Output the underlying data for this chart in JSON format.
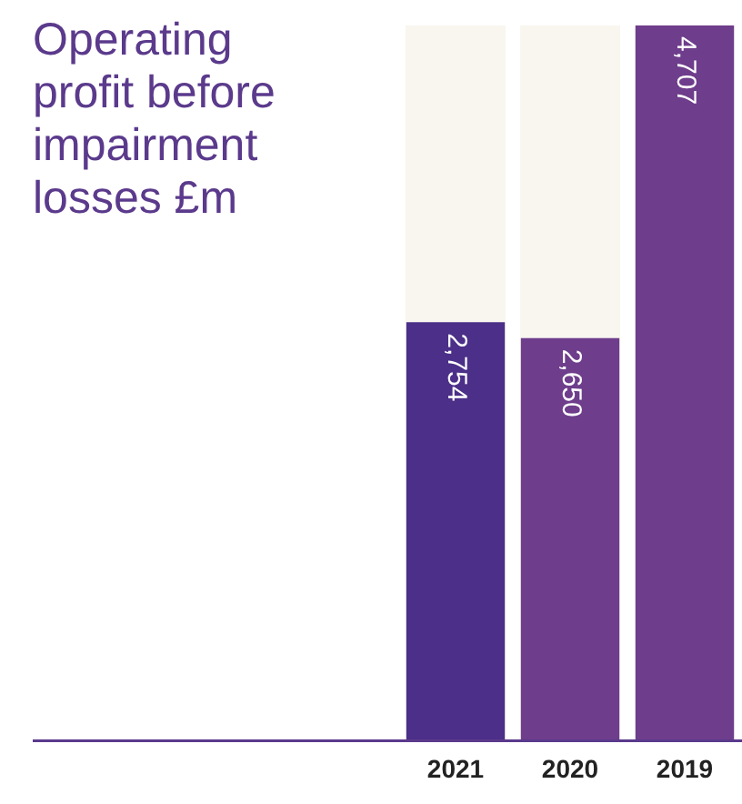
{
  "chart_data": {
    "type": "bar",
    "title": "Operating profit before impairment losses £m",
    "categories": [
      "2021",
      "2020",
      "2019"
    ],
    "values": [
      2754,
      2650,
      4707
    ],
    "colors": [
      "#4b2f88",
      "#6e3d8b",
      "#6e3d8b"
    ],
    "value_labels": [
      "2,754",
      "2,650",
      "4,707"
    ],
    "tick_labels": "x",
    "grid": false,
    "legend": false
  }
}
